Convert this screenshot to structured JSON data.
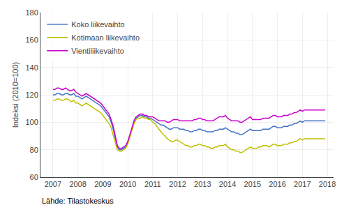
{
  "chart_data": {
    "type": "line",
    "ylabel": "Indeksi (2010=100)",
    "annotations": [
      "Lähde: Tilastokeskus"
    ],
    "xlim": [
      2006.5,
      2018.25
    ],
    "ylim": [
      60,
      180
    ],
    "yticks": [
      60,
      80,
      100,
      120,
      140,
      160,
      180
    ],
    "xticks": [
      2007,
      2008,
      2009,
      2010,
      2011,
      2012,
      2013,
      2014,
      2015,
      2016,
      2017,
      2018
    ],
    "grid": true,
    "legend": "upper left",
    "x": [
      2007,
      2007.0833333333333,
      2007.1666666666667,
      2007.25,
      2007.3333333333333,
      2007.4166666666667,
      2007.5,
      2007.5833333333333,
      2007.6666666666667,
      2007.75,
      2007.8333333333333,
      2007.9166666666667,
      2008,
      2008.0833333333333,
      2008.1666666666667,
      2008.25,
      2008.3333333333333,
      2008.4166666666667,
      2008.5,
      2008.5833333333333,
      2008.6666666666667,
      2008.75,
      2008.8333333333333,
      2008.9166666666667,
      2009,
      2009.0833333333333,
      2009.1666666666667,
      2009.25,
      2009.3333333333333,
      2009.4166666666667,
      2009.5,
      2009.5833333333333,
      2009.6666666666667,
      2009.75,
      2009.8333333333333,
      2009.9166666666667,
      2010,
      2010.0833333333333,
      2010.1666666666667,
      2010.25,
      2010.3333333333333,
      2010.4166666666667,
      2010.5,
      2010.5833333333333,
      2010.6666666666667,
      2010.75,
      2010.8333333333333,
      2010.9166666666667,
      2011,
      2011.0833333333333,
      2011.1666666666667,
      2011.25,
      2011.3333333333333,
      2011.4166666666667,
      2011.5,
      2011.5833333333333,
      2011.6666666666667,
      2011.75,
      2011.8333333333333,
      2011.9166666666667,
      2012,
      2012.0833333333333,
      2012.1666666666667,
      2012.25,
      2012.3333333333333,
      2012.4166666666667,
      2012.5,
      2012.5833333333333,
      2012.6666666666667,
      2012.75,
      2012.8333333333333,
      2012.9166666666667,
      2013,
      2013.0833333333333,
      2013.1666666666667,
      2013.25,
      2013.3333333333333,
      2013.4166666666667,
      2013.5,
      2013.5833333333333,
      2013.6666666666667,
      2013.75,
      2013.8333333333333,
      2013.9166666666667,
      2014,
      2014.0833333333333,
      2014.1666666666667,
      2014.25,
      2014.3333333333333,
      2014.4166666666667,
      2014.5,
      2014.5833333333333,
      2014.6666666666667,
      2014.75,
      2014.8333333333333,
      2014.9166666666667,
      2015,
      2015.0833333333333,
      2015.1666666666667,
      2015.25,
      2015.3333333333333,
      2015.4166666666667,
      2015.5,
      2015.5833333333333,
      2015.6666666666667,
      2015.75,
      2015.8333333333333,
      2015.9166666666667,
      2016,
      2016.0833333333333,
      2016.1666666666667,
      2016.25,
      2016.3333333333333,
      2016.4166666666667,
      2016.5,
      2016.5833333333333,
      2016.6666666666667,
      2016.75,
      2016.8333333333333,
      2016.9166666666667,
      2017,
      2017.0833333333333,
      2017.1666666666667,
      2017.25,
      2017.3333333333333,
      2017.4166666666667,
      2017.5,
      2017.5833333333333,
      2017.6666666666667,
      2017.75,
      2017.8333333333333,
      2017.9166666666667
    ],
    "series": [
      {
        "name": "Koko liikevaihto",
        "color": "#4472c4",
        "values": [
          120,
          120,
          121,
          121,
          120,
          120,
          121,
          121,
          120,
          120,
          121,
          119,
          119,
          118,
          117,
          118,
          119,
          118,
          117,
          116,
          115,
          114,
          113,
          112,
          110,
          108,
          106,
          104,
          100,
          95,
          88,
          82,
          80,
          80,
          81,
          82,
          85,
          90,
          95,
          100,
          103,
          104,
          105,
          105,
          104,
          104,
          103,
          103,
          102,
          101,
          100,
          99,
          98,
          98,
          97,
          96,
          95,
          95,
          96,
          96,
          96,
          95,
          95,
          95,
          94,
          94,
          93,
          93,
          94,
          94,
          95,
          95,
          94,
          94,
          93,
          93,
          93,
          93,
          94,
          94,
          95,
          95,
          95,
          96,
          95,
          94,
          93,
          93,
          92,
          92,
          91,
          91,
          92,
          93,
          94,
          95,
          94,
          94,
          94,
          94,
          94,
          95,
          95,
          95,
          95,
          96,
          97,
          97,
          96,
          96,
          96,
          97,
          97,
          97,
          98,
          98,
          99,
          99,
          100,
          101,
          100,
          101,
          101,
          101,
          101,
          101,
          101,
          101,
          101,
          101,
          101,
          101
        ]
      },
      {
        "name": "Kotimaan liikevaihto",
        "color": "#bfbf00",
        "values": [
          116,
          116,
          117,
          117,
          116,
          116,
          117,
          117,
          116,
          115,
          116,
          114,
          114,
          113,
          112,
          113,
          114,
          113,
          112,
          111,
          110,
          109,
          108,
          107,
          105,
          103,
          101,
          99,
          96,
          91,
          85,
          80,
          79,
          79,
          80,
          81,
          84,
          89,
          94,
          99,
          102,
          103,
          103,
          104,
          103,
          103,
          102,
          102,
          100,
          99,
          97,
          95,
          93,
          91,
          90,
          88,
          87,
          86,
          86,
          87,
          87,
          86,
          85,
          84,
          83,
          83,
          82,
          82,
          83,
          83,
          84,
          84,
          83,
          83,
          82,
          82,
          81,
          81,
          82,
          82,
          83,
          83,
          83,
          84,
          82,
          81,
          80,
          80,
          79,
          79,
          78,
          78,
          79,
          80,
          81,
          82,
          81,
          81,
          81,
          82,
          82,
          83,
          83,
          83,
          82,
          83,
          84,
          84,
          83,
          83,
          83,
          84,
          84,
          84,
          85,
          85,
          86,
          86,
          87,
          88,
          87,
          88,
          88,
          88,
          88,
          88,
          88,
          88,
          88,
          88,
          88,
          88
        ]
      },
      {
        "name": "Vientiliikevaihto",
        "color": "#cc00cc",
        "values": [
          124,
          124,
          125,
          125,
          124,
          124,
          125,
          124,
          123,
          123,
          124,
          122,
          121,
          120,
          119,
          120,
          121,
          120,
          119,
          118,
          117,
          116,
          115,
          114,
          112,
          110,
          108,
          106,
          102,
          97,
          90,
          83,
          81,
          81,
          82,
          83,
          86,
          91,
          96,
          101,
          104,
          105,
          106,
          106,
          105,
          105,
          104,
          104,
          104,
          103,
          102,
          101,
          101,
          101,
          101,
          100,
          100,
          101,
          102,
          102,
          102,
          101,
          101,
          101,
          101,
          101,
          101,
          101,
          102,
          102,
          103,
          103,
          102,
          102,
          101,
          101,
          101,
          101,
          102,
          103,
          104,
          104,
          104,
          105,
          103,
          102,
          101,
          101,
          101,
          101,
          100,
          100,
          101,
          102,
          103,
          104,
          102,
          102,
          102,
          102,
          102,
          103,
          103,
          103,
          103,
          104,
          105,
          105,
          104,
          104,
          104,
          105,
          105,
          105,
          106,
          106,
          107,
          107,
          108,
          109,
          108,
          109,
          109,
          109,
          109,
          109,
          109,
          109,
          109,
          109,
          109,
          109
        ]
      }
    ]
  }
}
